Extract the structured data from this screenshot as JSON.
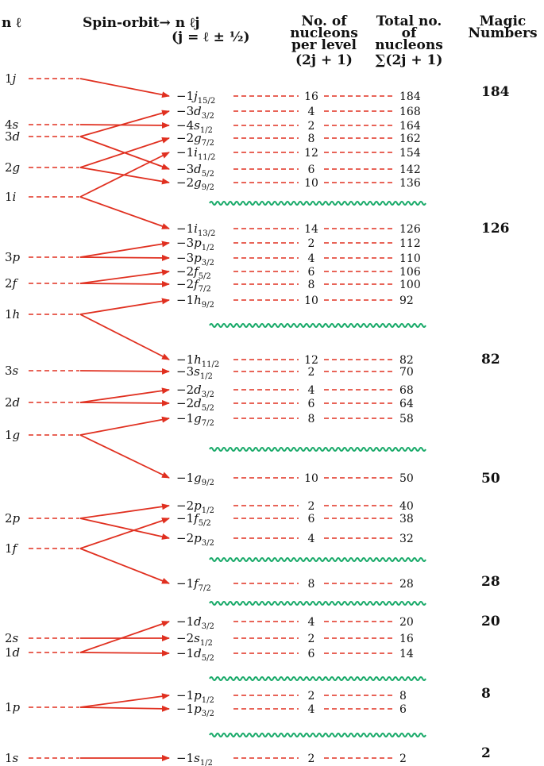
{
  "headers": {
    "n_l": "n ℓ",
    "spin_orbit": "Spin-orbit→ n ℓj",
    "j_formula": "(j = ℓ ± ½)",
    "per_level_1": "No. of",
    "per_level_2": "nucleons",
    "per_level_3": "per level",
    "per_level_4": "(2j + 1)",
    "total_1": "Total no.",
    "total_2": "of",
    "total_3": "nucleons",
    "total_4": "∑(2j + 1)",
    "magic_1": "Magic",
    "magic_2": "Numbers"
  },
  "colors": {
    "line": "#e03020",
    "wave": "#1aaa6a",
    "text": "#111111"
  },
  "orbitals": [
    {
      "n": "1",
      "l": "j"
    },
    {
      "n": "4",
      "l": "s"
    },
    {
      "n": "3",
      "l": "d"
    },
    {
      "n": "2",
      "l": "g"
    },
    {
      "n": "1",
      "l": "i"
    },
    {
      "n": "3",
      "l": "p"
    },
    {
      "n": "2",
      "l": "f"
    },
    {
      "n": "1",
      "l": "h"
    },
    {
      "n": "3",
      "l": "s"
    },
    {
      "n": "2",
      "l": "d"
    },
    {
      "n": "1",
      "l": "g"
    },
    {
      "n": "2",
      "l": "p"
    },
    {
      "n": "1",
      "l": "f"
    },
    {
      "n": "2",
      "l": "s"
    },
    {
      "n": "1",
      "l": "d"
    },
    {
      "n": "1",
      "l": "p"
    },
    {
      "n": "1",
      "l": "s"
    }
  ],
  "levels": [
    {
      "n": "1",
      "l": "j",
      "j": "15/2",
      "deg": "16",
      "total": "184"
    },
    {
      "n": "3",
      "l": "d",
      "j": "3/2",
      "deg": "4",
      "total": "168"
    },
    {
      "n": "4",
      "l": "s",
      "j": "1/2",
      "deg": "2",
      "total": "164"
    },
    {
      "n": "2",
      "l": "g",
      "j": "7/2",
      "deg": "8",
      "total": "162"
    },
    {
      "n": "1",
      "l": "i",
      "j": "11/2",
      "deg": "12",
      "total": "154"
    },
    {
      "n": "3",
      "l": "d",
      "j": "5/2",
      "deg": "6",
      "total": "142"
    },
    {
      "n": "2",
      "l": "g",
      "j": "9/2",
      "deg": "10",
      "total": "136"
    },
    {
      "n": "1",
      "l": "i",
      "j": "13/2",
      "deg": "14",
      "total": "126"
    },
    {
      "n": "3",
      "l": "p",
      "j": "1/2",
      "deg": "2",
      "total": "112"
    },
    {
      "n": "3",
      "l": "p",
      "j": "3/2",
      "deg": "4",
      "total": "110"
    },
    {
      "n": "2",
      "l": "f",
      "j": "5/2",
      "deg": "6",
      "total": "106"
    },
    {
      "n": "2",
      "l": "f",
      "j": "7/2",
      "deg": "8",
      "total": "100"
    },
    {
      "n": "1",
      "l": "h",
      "j": "9/2",
      "deg": "10",
      "total": "92"
    },
    {
      "n": "1",
      "l": "h",
      "j": "11/2",
      "deg": "12",
      "total": "82"
    },
    {
      "n": "3",
      "l": "s",
      "j": "1/2",
      "deg": "2",
      "total": "70"
    },
    {
      "n": "2",
      "l": "d",
      "j": "3/2",
      "deg": "4",
      "total": "68"
    },
    {
      "n": "2",
      "l": "d",
      "j": "5/2",
      "deg": "6",
      "total": "64"
    },
    {
      "n": "1",
      "l": "g",
      "j": "7/2",
      "deg": "8",
      "total": "58"
    },
    {
      "n": "1",
      "l": "g",
      "j": "9/2",
      "deg": "10",
      "total": "50"
    },
    {
      "n": "2",
      "l": "p",
      "j": "1/2",
      "deg": "2",
      "total": "40"
    },
    {
      "n": "1",
      "l": "f",
      "j": "5/2",
      "deg": "6",
      "total": "38"
    },
    {
      "n": "2",
      "l": "p",
      "j": "3/2",
      "deg": "4",
      "total": "32"
    },
    {
      "n": "1",
      "l": "f",
      "j": "7/2",
      "deg": "8",
      "total": "28"
    },
    {
      "n": "1",
      "l": "d",
      "j": "3/2",
      "deg": "4",
      "total": "20"
    },
    {
      "n": "2",
      "l": "s",
      "j": "1/2",
      "deg": "2",
      "total": "16"
    },
    {
      "n": "1",
      "l": "d",
      "j": "5/2",
      "deg": "6",
      "total": "14"
    },
    {
      "n": "1",
      "l": "p",
      "j": "1/2",
      "deg": "2",
      "total": "8"
    },
    {
      "n": "1",
      "l": "p",
      "j": "3/2",
      "deg": "4",
      "total": "6"
    },
    {
      "n": "1",
      "l": "s",
      "j": "1/2",
      "deg": "2",
      "total": "2"
    }
  ],
  "magic_numbers": [
    "184",
    "126",
    "82",
    "50",
    "28",
    "20",
    "8",
    "2"
  ]
}
